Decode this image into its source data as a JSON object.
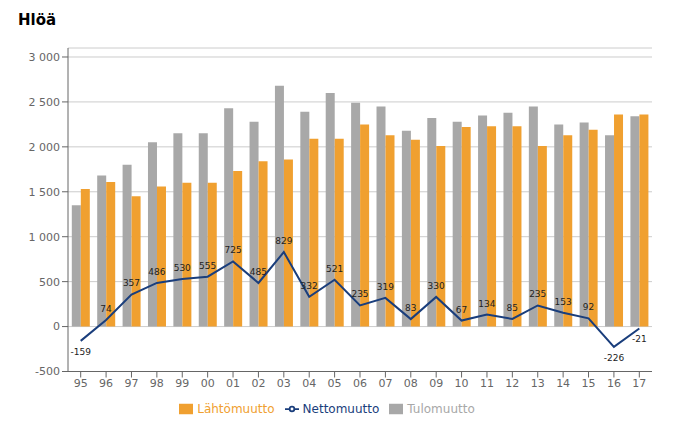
{
  "chart_data": {
    "type": "bar",
    "title": "Hlöä",
    "categories": [
      "95",
      "96",
      "97",
      "98",
      "99",
      "00",
      "01",
      "02",
      "03",
      "04",
      "05",
      "06",
      "07",
      "08",
      "09",
      "10",
      "11",
      "12",
      "13",
      "14",
      "15",
      "16",
      "17"
    ],
    "series": [
      {
        "name": "Tulomuutto",
        "color": "#a8a8a8",
        "values": [
          1350,
          1680,
          1800,
          2050,
          2150,
          2150,
          2430,
          2280,
          2680,
          2390,
          2600,
          2490,
          2450,
          2180,
          2320,
          2280,
          2350,
          2380,
          2450,
          2250,
          2270,
          2130,
          2340
        ]
      },
      {
        "name": "Lähtömuutto",
        "color": "#f0a030",
        "values": [
          1530,
          1610,
          1450,
          1560,
          1600,
          1600,
          1730,
          1840,
          1860,
          2090,
          2090,
          2250,
          2130,
          2080,
          2010,
          2220,
          2230,
          2230,
          2010,
          2130,
          2190,
          2360,
          2360
        ]
      },
      {
        "name": "Nettomuutto",
        "type": "line",
        "color": "#1a3e7c",
        "data_labels": true,
        "values": [
          -159,
          74,
          357,
          486,
          530,
          555,
          725,
          485,
          829,
          332,
          521,
          235,
          319,
          83,
          330,
          67,
          134,
          85,
          235,
          153,
          92,
          -226,
          -21
        ]
      }
    ],
    "ylim": [
      -500,
      3100
    ],
    "yticks": [
      -500,
      0,
      500,
      {
        "value": 1000,
        "label": "1 000"
      },
      {
        "value": 1500,
        "label": "1 500"
      },
      {
        "value": 2000,
        "label": "2 000"
      },
      {
        "value": 2500,
        "label": "2 500"
      },
      {
        "value": 3000,
        "label": "3 000"
      }
    ],
    "grid": true,
    "legend": "bottom"
  }
}
